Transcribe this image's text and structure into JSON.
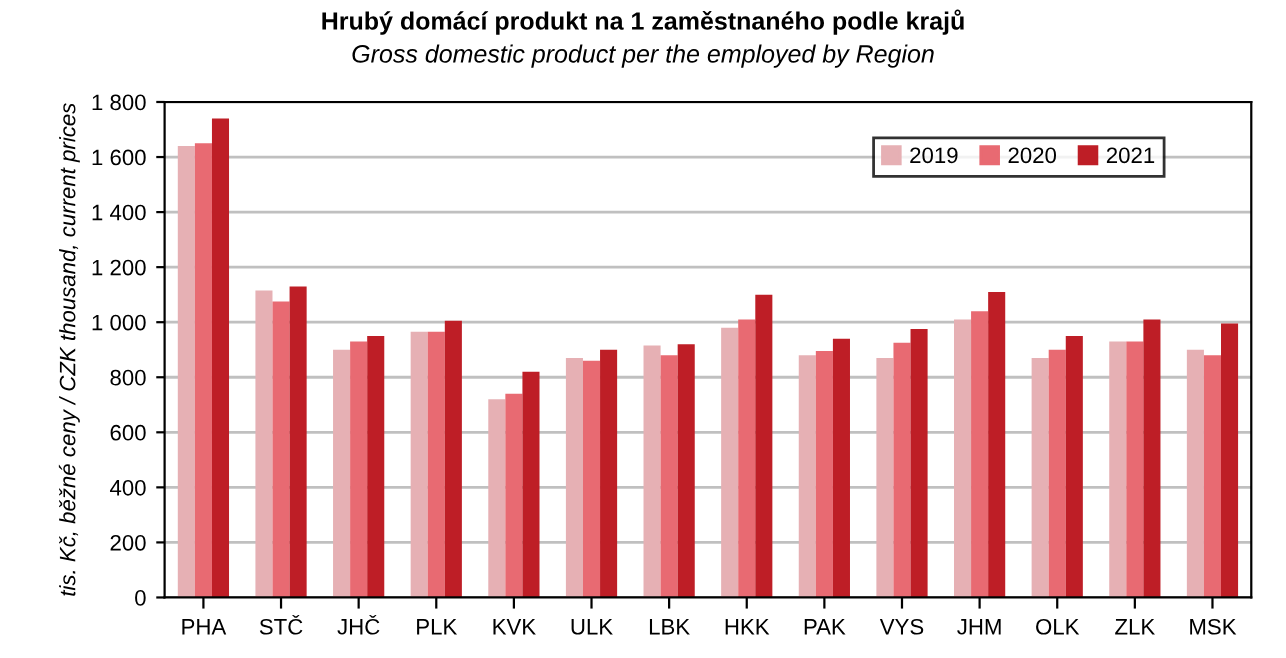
{
  "chart_data": {
    "type": "bar",
    "title": "Hrubý domácí produkt na 1 zaměstnaného podle krajů",
    "subtitle": "Gross domestic product per the employed by Region",
    "ylabel": "tis. Kč, běžné ceny / CZK thousand, current prices",
    "categories": [
      "PHA",
      "STČ",
      "JHČ",
      "PLK",
      "KVK",
      "ULK",
      "LBK",
      "HKK",
      "PAK",
      "VYS",
      "JHM",
      "OLK",
      "ZLK",
      "MSK"
    ],
    "series": [
      {
        "name": "2019",
        "color": "#e6b0b4",
        "values": [
          1640,
          1115,
          900,
          965,
          720,
          870,
          915,
          980,
          880,
          870,
          1010,
          870,
          930,
          900
        ]
      },
      {
        "name": "2020",
        "color": "#e86a72",
        "values": [
          1650,
          1075,
          930,
          965,
          740,
          860,
          880,
          1010,
          895,
          925,
          1040,
          900,
          930,
          880
        ]
      },
      {
        "name": "2021",
        "color": "#be1e26",
        "values": [
          1740,
          1130,
          950,
          1005,
          820,
          900,
          920,
          1100,
          940,
          975,
          1110,
          950,
          1010,
          995
        ]
      }
    ],
    "ylim": [
      0,
      1800
    ],
    "yticks": [
      0,
      200,
      400,
      600,
      800,
      {
        "value": 1000,
        "label": "1 000"
      },
      {
        "value": 1200,
        "label": "1 200"
      },
      {
        "value": 1400,
        "label": "1 400"
      },
      {
        "value": 1600,
        "label": "1 600"
      },
      {
        "value": 1800,
        "label": "1 800"
      }
    ],
    "grid": "y",
    "legend": "top right"
  }
}
